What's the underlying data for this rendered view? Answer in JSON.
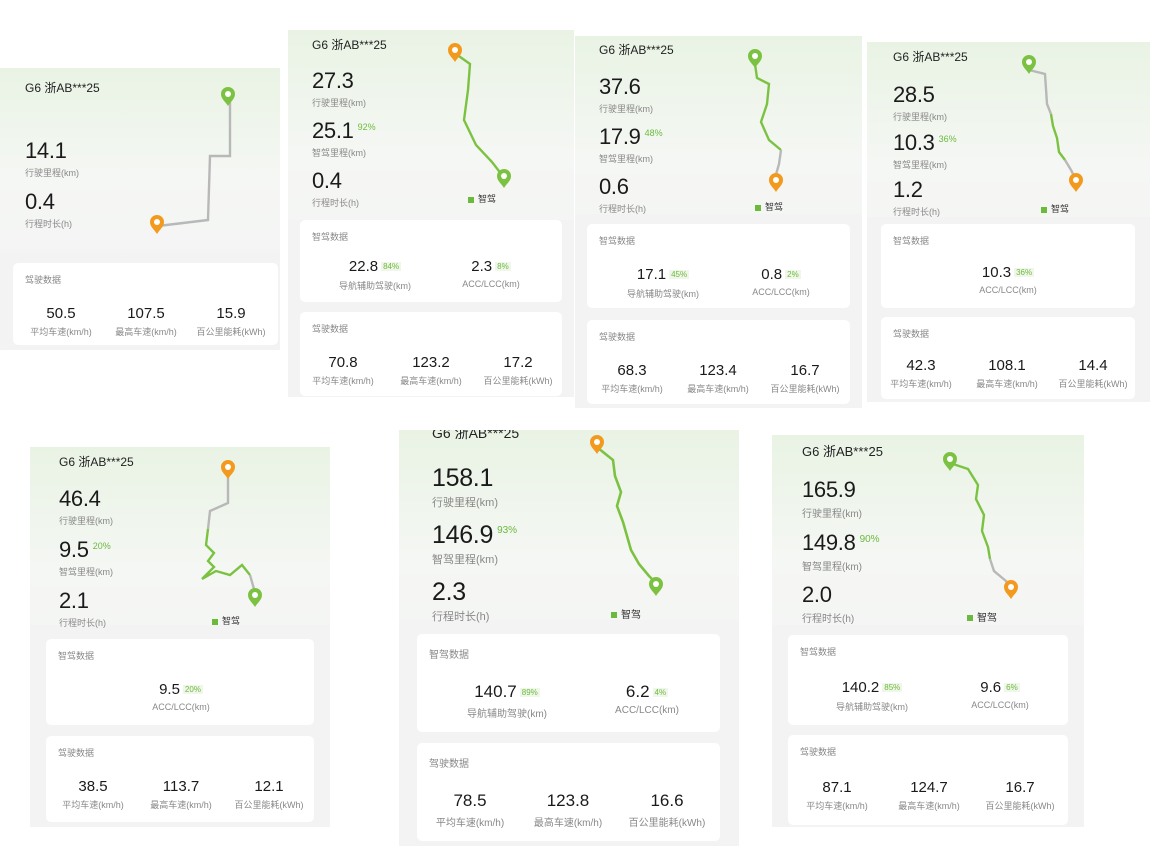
{
  "colors": {
    "smart": "#7cc242",
    "manual": "#b8b8b8",
    "start_pin": "#f39a1e",
    "end_pin": "#7cc242",
    "accent_text": "#6cba3c"
  },
  "icons": {
    "start": "orange-map-pin-icon",
    "end": "green-map-pin-icon",
    "legend": "green-square-icon"
  },
  "trips": [
    {
      "plate": "G6 浙AB***25",
      "distance": "14.1",
      "distance_label": "行驶里程(km)",
      "smart": "",
      "smart_pct": "",
      "smart_label": "",
      "duration": "0.4",
      "duration_label": "行程时长(h)",
      "legend": "",
      "smart_card": null,
      "drive_card": {
        "title": "驾驶数据",
        "items": [
          {
            "value": "50.5",
            "label": "平均车速(km/h)"
          },
          {
            "value": "107.5",
            "label": "最高车速(km/h)"
          },
          {
            "value": "15.9",
            "label": "百公里能耗(kWh)"
          }
        ]
      }
    },
    {
      "plate": "G6 浙AB***25",
      "distance": "27.3",
      "distance_label": "行驶里程(km)",
      "smart": "25.1",
      "smart_pct": "92%",
      "smart_label": "智驾里程(km)",
      "duration": "0.4",
      "duration_label": "行程时长(h)",
      "legend": "智驾",
      "smart_card": {
        "title": "智驾数据",
        "items": [
          {
            "value": "22.8",
            "pct": "84%",
            "label": "导航辅助驾驶(km)"
          },
          {
            "value": "2.3",
            "pct": "8%",
            "label": "ACC/LCC(km)"
          }
        ]
      },
      "drive_card": {
        "title": "驾驶数据",
        "items": [
          {
            "value": "70.8",
            "label": "平均车速(km/h)"
          },
          {
            "value": "123.2",
            "label": "最高车速(km/h)"
          },
          {
            "value": "17.2",
            "label": "百公里能耗(kWh)"
          }
        ]
      }
    },
    {
      "plate": "G6 浙AB***25",
      "distance": "37.6",
      "distance_label": "行驶里程(km)",
      "smart": "17.9",
      "smart_pct": "48%",
      "smart_label": "智驾里程(km)",
      "duration": "0.6",
      "duration_label": "行程时长(h)",
      "legend": "智驾",
      "smart_card": {
        "title": "智驾数据",
        "items": [
          {
            "value": "17.1",
            "pct": "45%",
            "label": "导航辅助驾驶(km)"
          },
          {
            "value": "0.8",
            "pct": "2%",
            "label": "ACC/LCC(km)"
          }
        ]
      },
      "drive_card": {
        "title": "驾驶数据",
        "items": [
          {
            "value": "68.3",
            "label": "平均车速(km/h)"
          },
          {
            "value": "123.4",
            "label": "最高车速(km/h)"
          },
          {
            "value": "16.7",
            "label": "百公里能耗(kWh)"
          }
        ]
      }
    },
    {
      "plate": "G6 浙AB***25",
      "distance": "28.5",
      "distance_label": "行驶里程(km)",
      "smart": "10.3",
      "smart_pct": "36%",
      "smart_label": "智驾里程(km)",
      "duration": "1.2",
      "duration_label": "行程时长(h)",
      "legend": "智驾",
      "smart_card": {
        "title": "智驾数据",
        "items": [
          {
            "value": "10.3",
            "pct": "36%",
            "label": "ACC/LCC(km)"
          }
        ]
      },
      "drive_card": {
        "title": "驾驶数据",
        "items": [
          {
            "value": "42.3",
            "label": "平均车速(km/h)"
          },
          {
            "value": "108.1",
            "label": "最高车速(km/h)"
          },
          {
            "value": "14.4",
            "label": "百公里能耗(kWh)"
          }
        ]
      }
    },
    {
      "plate": "G6 浙AB***25",
      "distance": "46.4",
      "distance_label": "行驶里程(km)",
      "smart": "9.5",
      "smart_pct": "20%",
      "smart_label": "智驾里程(km)",
      "duration": "2.1",
      "duration_label": "行程时长(h)",
      "legend": "智驾",
      "smart_card": {
        "title": "智驾数据",
        "items": [
          {
            "value": "9.5",
            "pct": "20%",
            "label": "ACC/LCC(km)"
          }
        ]
      },
      "drive_card": {
        "title": "驾驶数据",
        "items": [
          {
            "value": "38.5",
            "label": "平均车速(km/h)"
          },
          {
            "value": "113.7",
            "label": "最高车速(km/h)"
          },
          {
            "value": "12.1",
            "label": "百公里能耗(kWh)"
          }
        ]
      }
    },
    {
      "plate": "G6 浙AB***25",
      "distance": "158.1",
      "distance_label": "行驶里程(km)",
      "smart": "146.9",
      "smart_pct": "93%",
      "smart_label": "智驾里程(km)",
      "duration": "2.3",
      "duration_label": "行程时长(h)",
      "legend": "智驾",
      "smart_card": {
        "title": "智驾数据",
        "items": [
          {
            "value": "140.7",
            "pct": "89%",
            "label": "导航辅助驾驶(km)"
          },
          {
            "value": "6.2",
            "pct": "4%",
            "label": "ACC/LCC(km)"
          }
        ]
      },
      "drive_card": {
        "title": "驾驶数据",
        "items": [
          {
            "value": "78.5",
            "label": "平均车速(km/h)"
          },
          {
            "value": "123.8",
            "label": "最高车速(km/h)"
          },
          {
            "value": "16.6",
            "label": "百公里能耗(kWh)"
          }
        ]
      }
    },
    {
      "plate": "G6 浙AB***25",
      "distance": "165.9",
      "distance_label": "行驶里程(km)",
      "smart": "149.8",
      "smart_pct": "90%",
      "smart_label": "智驾里程(km)",
      "duration": "2.0",
      "duration_label": "行程时长(h)",
      "legend": "智驾",
      "smart_card": {
        "title": "智驾数据",
        "items": [
          {
            "value": "140.2",
            "pct": "85%",
            "label": "导航辅助驾驶(km)"
          },
          {
            "value": "9.6",
            "pct": "6%",
            "label": "ACC/LCC(km)"
          }
        ]
      },
      "drive_card": {
        "title": "驾驶数据",
        "items": [
          {
            "value": "87.1",
            "label": "平均车速(km/h)"
          },
          {
            "value": "124.7",
            "label": "最高车速(km/h)"
          },
          {
            "value": "16.7",
            "label": "百公里能耗(kWh)"
          }
        ]
      }
    }
  ]
}
